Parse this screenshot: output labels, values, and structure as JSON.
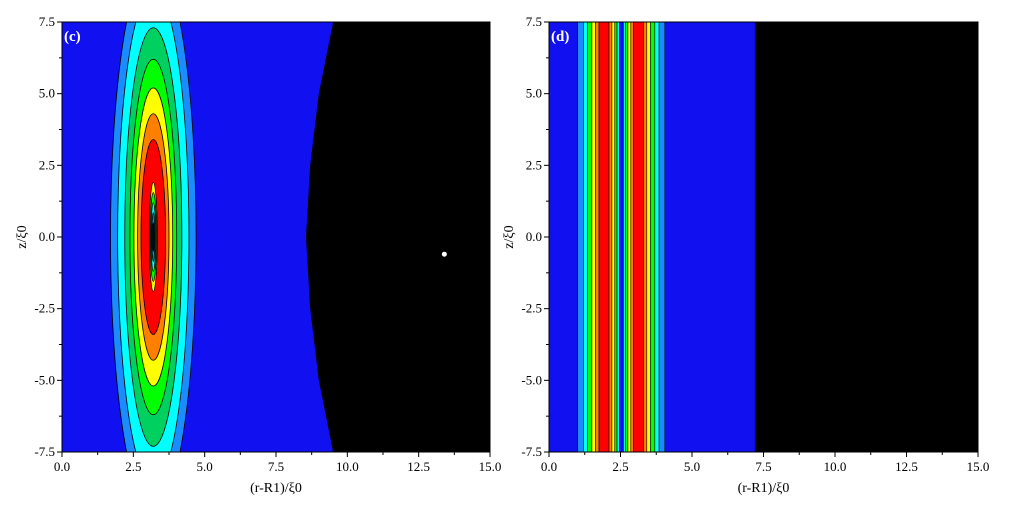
{
  "chart_data": [
    {
      "type": "heatmap",
      "panel_label": "(c)",
      "xlabel": "(r-R1)/ξ0",
      "ylabel": "z/ξ0",
      "xlim": [
        0,
        15
      ],
      "ylim": [
        -7.5,
        7.5
      ],
      "x_ticks": [
        "0.0",
        "2.5",
        "5.0",
        "7.5",
        "10.0",
        "12.5",
        "15.0"
      ],
      "y_ticks": [
        "7.5",
        "5.0",
        "2.5",
        "0.0",
        "-2.5",
        "-5.0",
        "-7.5"
      ],
      "background_color": "#1010f0",
      "contour_center": {
        "x": 3.2,
        "z": 0.0
      },
      "contour_levels": [
        {
          "color": "#1a8cff",
          "half_width": 1.5,
          "half_height": 9.6
        },
        {
          "color": "#00ffff",
          "half_width": 1.25,
          "half_height": 8.6
        },
        {
          "color": "#00d060",
          "half_width": 1.0,
          "half_height": 7.3
        },
        {
          "color": "#00ff00",
          "half_width": 0.82,
          "half_height": 6.2
        },
        {
          "color": "#ffff00",
          "half_width": 0.68,
          "half_height": 5.2
        },
        {
          "color": "#ff8000",
          "half_width": 0.55,
          "half_height": 4.3
        },
        {
          "color": "#ff0000",
          "half_width": 0.43,
          "half_height": 3.4
        },
        {
          "color": "#ffff00",
          "half_width": 0.14,
          "half_height": 1.9
        },
        {
          "color": "#00ff00",
          "half_width": 0.11,
          "half_height": 1.55
        },
        {
          "color": "#00ffff",
          "half_width": 0.08,
          "half_height": 1.2
        },
        {
          "color": "#1a8cff",
          "half_width": 0.05,
          "half_height": 0.85
        },
        {
          "color": "#000080",
          "half_width": 0.025,
          "half_height": 0.5
        }
      ],
      "black_region_boundary": [
        {
          "z": 7.5,
          "x": 9.5
        },
        {
          "z": 6.5,
          "x": 9.3
        },
        {
          "z": 5.0,
          "x": 9.0
        },
        {
          "z": 2.5,
          "x": 8.7
        },
        {
          "z": 0.0,
          "x": 8.55
        },
        {
          "z": -2.5,
          "x": 8.7
        },
        {
          "z": -5.0,
          "x": 9.0
        },
        {
          "z": -6.5,
          "x": 9.3
        },
        {
          "z": -7.5,
          "x": 9.5
        }
      ],
      "marker": {
        "x": 13.4,
        "z": -0.6,
        "color": "#ffffff"
      }
    },
    {
      "type": "heatmap",
      "panel_label": "(d)",
      "xlabel": "(r-R1)/ξ0",
      "ylabel": "z/ξ0",
      "xlim": [
        0,
        15
      ],
      "ylim": [
        -7.5,
        7.5
      ],
      "x_ticks": [
        "0.0",
        "2.5",
        "5.0",
        "7.5",
        "10.0",
        "12.5",
        "15.0"
      ],
      "y_ticks": [
        "7.5",
        "5.0",
        "2.5",
        "0.0",
        "-2.5",
        "-5.0",
        "-7.5"
      ],
      "background_color": "#1010f0",
      "bands": [
        {
          "x0": 1.0,
          "x1": 1.2,
          "color": "#1a8cff"
        },
        {
          "x0": 1.2,
          "x1": 1.35,
          "color": "#00ffff"
        },
        {
          "x0": 1.35,
          "x1": 1.5,
          "color": "#00ff00"
        },
        {
          "x0": 1.5,
          "x1": 1.62,
          "color": "#ffff00"
        },
        {
          "x0": 1.62,
          "x1": 1.75,
          "color": "#ff8000"
        },
        {
          "x0": 1.75,
          "x1": 2.1,
          "color": "#ff0000"
        },
        {
          "x0": 2.1,
          "x1": 2.2,
          "color": "#ff8000"
        },
        {
          "x0": 2.2,
          "x1": 2.3,
          "color": "#ffff00"
        },
        {
          "x0": 2.3,
          "x1": 2.38,
          "color": "#00ff00"
        },
        {
          "x0": 2.38,
          "x1": 2.46,
          "color": "#00ffff"
        },
        {
          "x0": 2.46,
          "x1": 2.6,
          "color": "#1010f0"
        },
        {
          "x0": 2.6,
          "x1": 2.68,
          "color": "#00ffff"
        },
        {
          "x0": 2.68,
          "x1": 2.76,
          "color": "#00ff00"
        },
        {
          "x0": 2.76,
          "x1": 2.86,
          "color": "#ffff00"
        },
        {
          "x0": 2.86,
          "x1": 2.96,
          "color": "#ff8000"
        },
        {
          "x0": 2.96,
          "x1": 3.3,
          "color": "#ff0000"
        },
        {
          "x0": 3.3,
          "x1": 3.42,
          "color": "#ff8000"
        },
        {
          "x0": 3.42,
          "x1": 3.55,
          "color": "#ffff00"
        },
        {
          "x0": 3.55,
          "x1": 3.7,
          "color": "#00ff00"
        },
        {
          "x0": 3.7,
          "x1": 3.85,
          "color": "#00ffff"
        },
        {
          "x0": 3.85,
          "x1": 4.05,
          "color": "#1a8cff"
        }
      ],
      "black_region_x_start": 7.2
    }
  ]
}
